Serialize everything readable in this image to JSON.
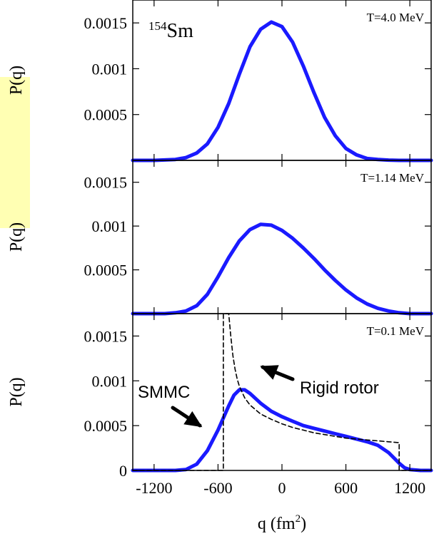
{
  "chart_data": {
    "type": "line",
    "x_ticks": [
      "-1200",
      "-600",
      "0",
      "600",
      "1200"
    ],
    "x_tick_values": [
      -1200,
      -600,
      0,
      600,
      1200
    ],
    "xlim": [
      -1400,
      1400
    ],
    "xlabel_base": "q (fm",
    "xlabel_sup": "2",
    "xlabel_close": ")",
    "ylim": [
      0,
      0.00175
    ],
    "isotope": {
      "mass": "154",
      "symbol": "Sm"
    },
    "highlight_color": "#ffffb3",
    "panels": [
      {
        "ylabel": "P(q)",
        "temperature": "T=4.0 MeV",
        "y_ticks": [
          "0.0015",
          "0.001",
          "0.0005"
        ],
        "y_tick_values": [
          0.0015,
          0.001,
          0.0005
        ],
        "series": [
          {
            "color": "#1a1aff",
            "x": [
              -1400,
              -1200,
              -1100,
              -1000,
              -900,
              -800,
              -700,
              -600,
              -500,
              -400,
              -300,
              -200,
              -100,
              0,
              100,
              200,
              300,
              400,
              500,
              600,
              700,
              800,
              900,
              1000,
              1100,
              1200,
              1400
            ],
            "y": [
              0,
              0,
              5e-06,
              1e-05,
              3e-05,
              8e-05,
              0.00018,
              0.00036,
              0.00062,
              0.00094,
              0.00124,
              0.00143,
              0.00151,
              0.00146,
              0.00129,
              0.00103,
              0.00074,
              0.00047,
              0.00027,
              0.00013,
              6e-05,
              2e-05,
              1e-05,
              3e-06,
              0,
              0,
              0
            ]
          }
        ]
      },
      {
        "ylabel": "P(q)",
        "temperature": "T=1.14 MeV",
        "y_ticks": [
          "0.0015",
          "0.001",
          "0.0005"
        ],
        "y_tick_values": [
          0.0015,
          0.001,
          0.0005
        ],
        "series": [
          {
            "color": "#1a1aff",
            "x": [
              -1400,
              -1100,
              -1000,
              -900,
              -800,
              -700,
              -600,
              -500,
              -400,
              -300,
              -200,
              -100,
              0,
              100,
              200,
              300,
              400,
              500,
              600,
              700,
              800,
              900,
              1000,
              1100,
              1200,
              1300,
              1400
            ],
            "y": [
              0,
              0,
              1e-05,
              3e-05,
              9e-05,
              0.00022,
              0.00042,
              0.00064,
              0.00083,
              0.00096,
              0.00102,
              0.00101,
              0.00095,
              0.00086,
              0.00075,
              0.00063,
              0.0005,
              0.00038,
              0.00027,
              0.00018,
              0.00011,
              6e-05,
              3e-05,
              1e-05,
              0,
              0,
              0
            ]
          }
        ]
      },
      {
        "ylabel": "P(q)",
        "temperature": "T=0.1 MeV",
        "y_ticks": [
          "0.0015",
          "0.001",
          "0.0005",
          "0"
        ],
        "y_tick_values": [
          0.0015,
          0.001,
          0.0005,
          0
        ],
        "series": [
          {
            "name": "SMMC",
            "color": "#1a1aff",
            "x": [
              -1400,
              -1000,
              -900,
              -800,
              -700,
              -600,
              -500,
              -450,
              -400,
              -350,
              -300,
              -200,
              -100,
              0,
              100,
              200,
              300,
              400,
              500,
              600,
              700,
              800,
              900,
              1000,
              1050,
              1100,
              1150,
              1200,
              1300,
              1400
            ],
            "y": [
              0,
              0,
              1e-05,
              7e-05,
              0.00022,
              0.00045,
              0.00072,
              0.00084,
              0.0009,
              0.0009,
              0.00086,
              0.00075,
              0.00066,
              0.0006,
              0.00055,
              0.0005,
              0.00047,
              0.00044,
              0.00041,
              0.00038,
              0.00035,
              0.00032,
              0.00028,
              0.0002,
              0.00014,
              8e-05,
              3e-05,
              1e-05,
              0,
              0
            ]
          },
          {
            "name": "Rigid rotor",
            "color": "#000000",
            "dashed": true,
            "x": [
              -1400,
              -550,
              -550,
              -500,
              -480,
              -460,
              -440,
              -420,
              -400,
              -350,
              -300,
              -200,
              -100,
              0,
              100,
              200,
              300,
              400,
              500,
              600,
              700,
              800,
              900,
              1000,
              1100,
              1100,
              1400
            ],
            "y": [
              0,
              0,
              0.00175,
              0.00175,
              0.0015,
              0.00128,
              0.00113,
              0.00102,
              0.00094,
              0.00081,
              0.00073,
              0.00063,
              0.00057,
              0.00052,
              0.00048,
              0.00045,
              0.00042,
              0.0004,
              0.00038,
              0.00036,
              0.00035,
              0.00034,
              0.00033,
              0.00032,
              0.00031,
              0,
              0
            ]
          }
        ],
        "annotations": [
          {
            "text": "SMMC"
          },
          {
            "text": "Rigid rotor"
          }
        ]
      }
    ]
  }
}
